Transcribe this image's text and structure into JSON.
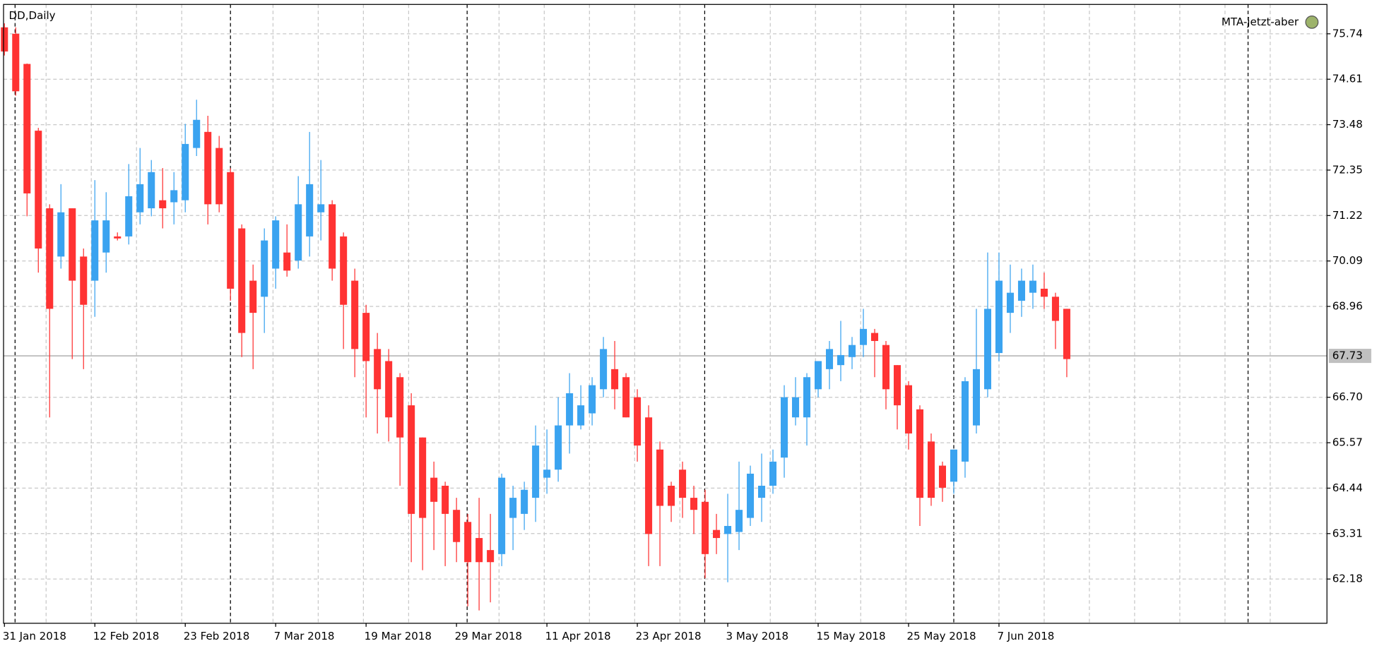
{
  "chart_data": {
    "type": "candlestick",
    "title": "DD,Daily",
    "indicator": "MTA-jetzt-aber",
    "categories": [
      "31 Jan 2018",
      null,
      null,
      null,
      null,
      null,
      null,
      null,
      "12 Feb 2018",
      null,
      null,
      null,
      null,
      null,
      null,
      null,
      "23 Feb 2018",
      null,
      null,
      null,
      null,
      null,
      null,
      null,
      "7 Mar 2018",
      null,
      null,
      null,
      null,
      null,
      null,
      null,
      "19 Mar 2018",
      null,
      null,
      null,
      null,
      null,
      null,
      null,
      "29 Mar 2018",
      null,
      null,
      null,
      null,
      null,
      null,
      null,
      "11 Apr 2018",
      null,
      null,
      null,
      null,
      null,
      null,
      null,
      "23 Apr 2018",
      null,
      null,
      null,
      null,
      null,
      null,
      null,
      "3 May 2018",
      null,
      null,
      null,
      null,
      null,
      null,
      null,
      "15 May 2018",
      null,
      null,
      null,
      null,
      null,
      null,
      null,
      "25 May 2018",
      null,
      null,
      null,
      null,
      null,
      null,
      null,
      "7 Jun 2018",
      null,
      null,
      null,
      null,
      null,
      null
    ],
    "open": [
      75.9,
      75.74,
      74.99,
      73.33,
      71.4,
      70.2,
      71.4,
      70.2,
      69.6,
      70.3,
      70.7,
      70.7,
      71.3,
      71.4,
      71.6,
      71.55,
      71.6,
      72.9,
      73.3,
      72.9,
      72.3,
      70.9,
      69.6,
      69.2,
      69.9,
      70.3,
      70.1,
      70.7,
      71.3,
      71.5,
      70.7,
      69.6,
      68.8,
      67.9,
      67.6,
      67.2,
      66.5,
      65.7,
      64.7,
      64.5,
      63.9,
      63.6,
      63.2,
      62.9,
      62.8,
      63.7,
      63.8,
      64.2,
      64.7,
      64.9,
      66.0,
      66.0,
      66.3,
      66.9,
      67.4,
      67.2,
      66.7,
      66.2,
      65.4,
      64.5,
      64.9,
      64.2,
      64.1,
      63.4,
      63.3,
      63.35,
      63.7,
      64.2,
      64.5,
      65.2,
      66.2,
      66.2,
      66.9,
      67.4,
      67.5,
      67.7,
      68.0,
      68.3,
      68.0,
      67.5,
      67.0,
      66.4,
      65.6,
      65.0,
      64.6,
      65.1,
      66.0,
      66.9,
      67.8,
      68.8,
      69.1,
      69.3,
      69.4,
      69.2,
      68.9
    ],
    "high": [
      76.0,
      75.9,
      75.0,
      73.4,
      71.5,
      72.0,
      71.4,
      70.4,
      72.1,
      71.8,
      70.8,
      72.5,
      72.9,
      72.6,
      72.4,
      72.3,
      73.5,
      74.1,
      73.7,
      73.2,
      72.4,
      71.0,
      70.0,
      70.9,
      71.2,
      71.0,
      72.2,
      73.3,
      72.6,
      71.6,
      70.8,
      69.9,
      69.0,
      68.3,
      67.9,
      67.3,
      66.8,
      65.7,
      65.1,
      64.6,
      64.2,
      63.8,
      64.2,
      63.8,
      64.8,
      64.5,
      64.6,
      66.0,
      65.9,
      66.7,
      67.3,
      67.0,
      67.2,
      68.2,
      68.1,
      67.3,
      66.9,
      66.5,
      65.6,
      64.6,
      65.1,
      64.5,
      64.4,
      63.8,
      64.3,
      65.1,
      65.0,
      65.3,
      65.4,
      67.0,
      67.2,
      67.3,
      67.6,
      68.1,
      68.6,
      68.2,
      68.9,
      68.4,
      68.1,
      67.5,
      67.1,
      66.5,
      65.8,
      65.1,
      65.4,
      67.2,
      68.9,
      70.3,
      70.3,
      70.0,
      69.9,
      70.0,
      69.8,
      69.3,
      68.9
    ],
    "low": [
      75.2,
      74.2,
      71.2,
      69.8,
      66.2,
      69.9,
      67.65,
      67.4,
      68.7,
      69.8,
      70.6,
      70.5,
      71.0,
      71.2,
      70.9,
      71.0,
      71.3,
      72.7,
      71.0,
      71.3,
      69.1,
      67.7,
      67.4,
      68.3,
      69.4,
      69.7,
      69.9,
      70.2,
      70.6,
      69.6,
      67.9,
      67.2,
      66.2,
      65.8,
      65.6,
      64.5,
      62.6,
      62.4,
      62.9,
      62.5,
      62.6,
      61.5,
      61.4,
      61.6,
      62.5,
      62.9,
      63.4,
      63.6,
      64.3,
      64.6,
      65.3,
      65.9,
      66.0,
      66.7,
      66.4,
      66.2,
      65.1,
      62.5,
      62.5,
      63.6,
      63.7,
      63.3,
      62.2,
      62.8,
      62.1,
      62.9,
      63.5,
      63.6,
      64.3,
      64.7,
      66.0,
      65.5,
      66.7,
      66.9,
      67.1,
      67.4,
      67.7,
      67.2,
      66.4,
      65.9,
      65.4,
      63.5,
      64.0,
      64.1,
      64.3,
      64.7,
      65.8,
      66.7,
      67.6,
      68.3,
      68.7,
      68.9,
      68.9,
      67.9,
      67.2
    ],
    "close": [
      75.3,
      74.31,
      71.77,
      70.4,
      68.9,
      71.3,
      69.6,
      69.0,
      71.1,
      71.1,
      70.65,
      71.7,
      72.0,
      72.3,
      71.4,
      71.85,
      73.0,
      73.6,
      71.5,
      71.5,
      69.4,
      68.3,
      68.8,
      70.6,
      71.1,
      69.85,
      71.5,
      72.0,
      71.5,
      69.9,
      69.0,
      67.9,
      67.6,
      66.9,
      66.2,
      65.7,
      63.8,
      63.7,
      64.1,
      63.8,
      63.1,
      62.6,
      62.6,
      62.6,
      64.7,
      64.2,
      64.4,
      65.5,
      64.9,
      66.0,
      66.8,
      66.5,
      67.0,
      67.9,
      66.9,
      66.2,
      65.5,
      63.3,
      64.0,
      64.0,
      64.2,
      63.9,
      62.8,
      63.2,
      63.5,
      63.9,
      64.8,
      64.5,
      65.1,
      66.7,
      66.7,
      67.2,
      67.6,
      67.9,
      67.75,
      68.0,
      68.4,
      68.1,
      66.9,
      66.5,
      65.8,
      64.2,
      64.2,
      64.45,
      65.4,
      67.1,
      67.4,
      68.9,
      69.6,
      69.3,
      69.6,
      69.6,
      69.2,
      68.6,
      67.65
    ],
    "up_color": "#3aa3f0",
    "down_color": "#ff3333",
    "current_price": {
      "value": 67.73,
      "label": "67.73"
    },
    "ylim": [
      61.08,
      76.47
    ],
    "yticks": [
      75.74,
      74.61,
      73.48,
      72.35,
      71.22,
      70.09,
      68.96,
      {
        "value": 66.7,
        "label": "66.70"
      },
      65.57,
      64.44,
      63.31,
      62.18
    ],
    "grid": true
  }
}
